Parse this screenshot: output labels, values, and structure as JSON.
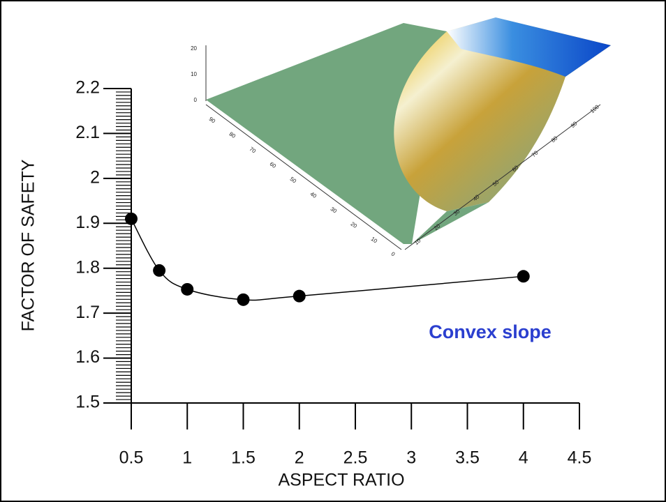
{
  "chart_data": {
    "type": "line",
    "x": [
      0.5,
      0.75,
      1,
      1.5,
      2,
      4
    ],
    "series": [
      {
        "name": "Convex slope",
        "color": "#000000",
        "values": [
          1.91,
          1.795,
          1.753,
          1.73,
          1.738,
          1.782
        ]
      }
    ],
    "xlim": [
      0.5,
      4.5
    ],
    "xticks": [
      0.5,
      1,
      1.5,
      2,
      2.5,
      3,
      3.5,
      4,
      4.5
    ],
    "ylim": [
      1.5,
      2.2
    ],
    "yticks": [
      1.5,
      1.6,
      1.7,
      1.8,
      1.9,
      2,
      2.1,
      2.2
    ],
    "xlabel": "ASPECT RATIO",
    "ylabel": "FACTOR OF SAFETY",
    "annotation": "Convex slope",
    "annotation_color": "#2b3fcf"
  },
  "inset": {
    "z_labels": [
      "20",
      "10",
      "0"
    ],
    "left_labels": [
      "90",
      "80",
      "70",
      "60",
      "50",
      "40",
      "30",
      "20",
      "10",
      "0"
    ],
    "right_labels": [
      "10",
      "20",
      "30",
      "40",
      "50",
      "60",
      "70",
      "80",
      "90",
      "100"
    ]
  }
}
